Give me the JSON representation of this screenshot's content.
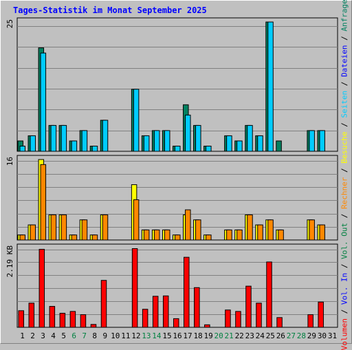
{
  "title": "Tages-Statistik im Monat September 2025",
  "colors": {
    "background": "#c0c0c0",
    "title": "#0000ff",
    "anfragen": "#008060",
    "dateien": "#00ccff",
    "besuche": "#ffff00",
    "rechner": "#ff8800",
    "volumen": "#ff0000",
    "weekday_label": "#000000",
    "weekend_label": "#008040"
  },
  "legend": {
    "separator": " / ",
    "items": [
      {
        "key": "volumen",
        "label": "Volumen",
        "color": "#ff0000"
      },
      {
        "key": "vol_in",
        "label": "Vol. In",
        "color": "#0000ff"
      },
      {
        "key": "vol_out",
        "label": "Vol. Out",
        "color": "#008040"
      },
      {
        "key": "rechner",
        "label": "Rechner",
        "color": "#ff8800"
      },
      {
        "key": "besuche",
        "label": "Besuche",
        "color": "#ffff00"
      },
      {
        "key": "seiten",
        "label": "Seiten",
        "color": "#00ccff"
      },
      {
        "key": "dateien",
        "label": "Dateien",
        "color": "#0000ff"
      },
      {
        "key": "anfragen",
        "label": "Anfragen",
        "color": "#008060"
      }
    ]
  },
  "chart_data": {
    "type": "bar",
    "x": [
      "1",
      "2",
      "3",
      "4",
      "5",
      "6",
      "7",
      "8",
      "9",
      "10",
      "11",
      "12",
      "13",
      "14",
      "15",
      "16",
      "17",
      "18",
      "19",
      "20",
      "21",
      "22",
      "23",
      "24",
      "25",
      "26",
      "27",
      "28",
      "29",
      "30",
      "31"
    ],
    "weekend_days": [
      "6",
      "7",
      "13",
      "14",
      "20",
      "21",
      "27",
      "28"
    ],
    "panels": [
      {
        "key": "requests",
        "ymax_label": "25",
        "ymax": 25,
        "series": [
          {
            "key": "anfragen",
            "values": [
              2,
              3,
              20,
              5,
              5,
              2,
              4,
              1,
              6,
              0,
              0,
              12,
              3,
              4,
              4,
              1,
              9,
              5,
              1,
              0,
              3,
              2,
              5,
              3,
              25,
              2,
              0,
              0,
              4,
              4,
              0
            ]
          },
          {
            "key": "dateien",
            "values": [
              1,
              3,
              19,
              5,
              5,
              2,
              4,
              1,
              6,
              0,
              0,
              12,
              3,
              4,
              4,
              1,
              7,
              5,
              1,
              0,
              3,
              2,
              5,
              3,
              25,
              0,
              0,
              0,
              4,
              4,
              0
            ]
          }
        ]
      },
      {
        "key": "visits",
        "ymax_label": "16",
        "ymax": 16,
        "series": [
          {
            "key": "besuche",
            "values": [
              1,
              3,
              16,
              5,
              5,
              1,
              4,
              1,
              5,
              0,
              0,
              11,
              2,
              2,
              2,
              1,
              5,
              4,
              1,
              0,
              2,
              2,
              5,
              3,
              4,
              2,
              0,
              0,
              4,
              3,
              0
            ]
          },
          {
            "key": "rechner",
            "values": [
              1,
              3,
              15,
              5,
              5,
              1,
              4,
              1,
              5,
              0,
              0,
              8,
              2,
              2,
              2,
              1,
              6,
              4,
              1,
              0,
              2,
              2,
              5,
              3,
              4,
              2,
              0,
              0,
              4,
              3,
              0
            ]
          }
        ]
      },
      {
        "key": "volume",
        "ymax_label": "2.19 KB",
        "ymax": 2.19,
        "series": [
          {
            "key": "volumen",
            "values": [
              0.46,
              0.67,
              2.16,
              0.58,
              0.39,
              0.44,
              0.35,
              0.08,
              1.3,
              0,
              0,
              2.18,
              0.5,
              0.86,
              0.87,
              0.24,
              1.94,
              1.1,
              0.07,
              0,
              0.48,
              0.44,
              1.14,
              0.67,
              1.81,
              0.27,
              0,
              0,
              0.35,
              0.7,
              0
            ]
          }
        ]
      }
    ]
  }
}
